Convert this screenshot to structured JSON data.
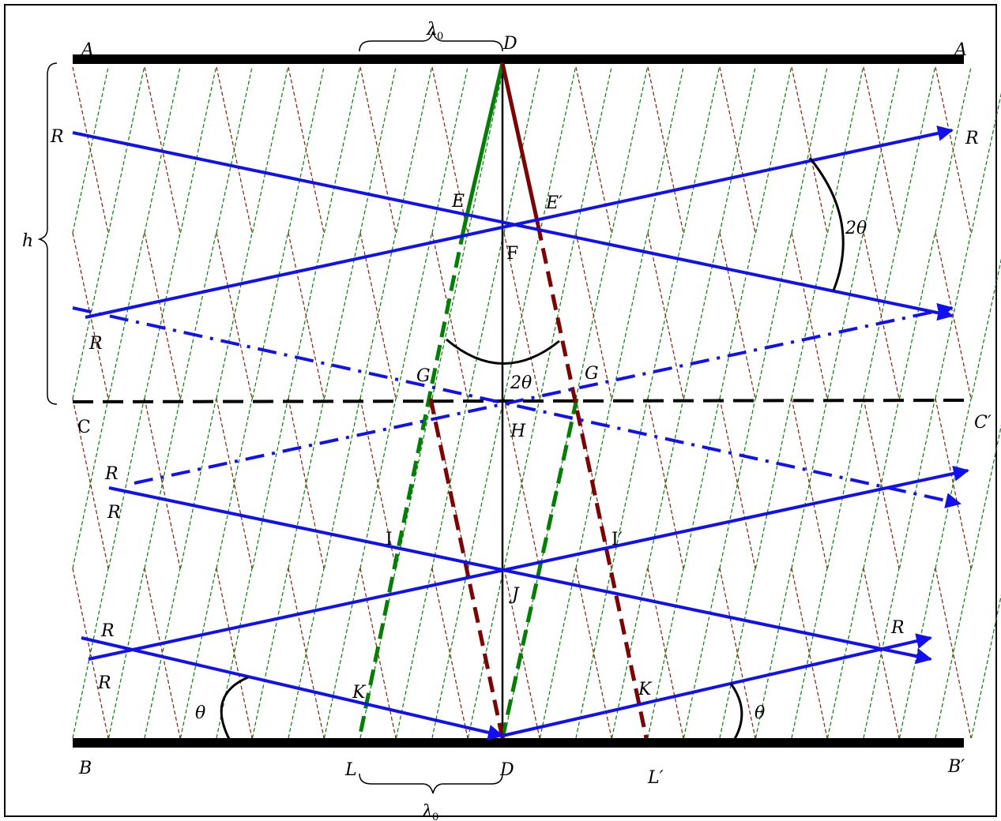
{
  "diagram": {
    "labels": {
      "A_left": "A",
      "A_right": "A",
      "D_top": "D",
      "lambda_top": "λ",
      "lambda_top_sub": "0",
      "R_top_left": "R",
      "R_top_right": "R",
      "h": "h",
      "E": "E",
      "E_prime": "E′",
      "F": "F",
      "two_theta_right": "2θ",
      "R_mid_left": "R",
      "G_left": "G",
      "two_theta_center": "2θ",
      "G_right": "G",
      "C": "C",
      "C_prime": "C′",
      "H": "H",
      "R_low1": "R",
      "R_low2": "R",
      "I": "I",
      "I_prime": "I′",
      "J": "J",
      "R_low3": "R",
      "R_low4": "R",
      "R_right_low": "R",
      "K_left": "K",
      "K_right": "K",
      "theta_left": "θ",
      "theta_right": "θ",
      "B": "B",
      "L": "L",
      "D_bottom": "D",
      "L_prime": "L′",
      "B_prime": "B′",
      "lambda_bottom": "λ",
      "lambda_bottom_sub": "0"
    },
    "colors": {
      "plate": "#000000",
      "ray": "#1010f0",
      "green_front": "#008000",
      "brown_front": "#800000",
      "grid_green": "#008000",
      "grid_brown": "#8b1a00"
    }
  }
}
